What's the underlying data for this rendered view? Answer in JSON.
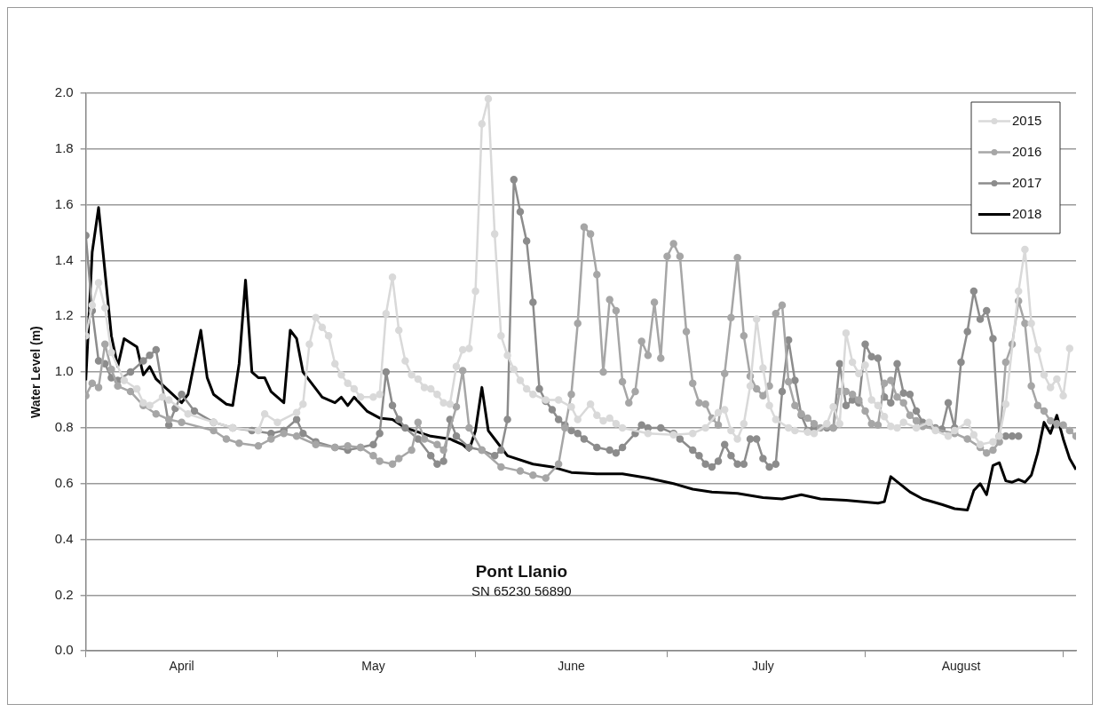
{
  "chart_data": {
    "type": "line",
    "ylabel": "Water Level (m)",
    "annotations": [
      "Pont Llanio",
      "SN 65230 56890"
    ],
    "xlim": [
      "--04-01",
      "--09-03"
    ],
    "xticks": [
      {
        "value": "--04-01",
        "label": null
      },
      {
        "value": "--04-16",
        "label": "April"
      },
      {
        "value": "--05-01",
        "label": null
      },
      {
        "value": "--05-16",
        "label": "May"
      },
      {
        "value": "--06-01",
        "label": null
      },
      {
        "value": "--06-16",
        "label": "June"
      },
      {
        "value": "--07-01",
        "label": null
      },
      {
        "value": "--07-16",
        "label": "July"
      },
      {
        "value": "--08-01",
        "label": null
      },
      {
        "value": "--08-16",
        "label": "August"
      },
      {
        "value": "--09-01",
        "label": null
      }
    ],
    "ylim": [
      0,
      2
    ],
    "yticks": [
      {
        "value": 0,
        "label": "0.0"
      },
      0.2,
      0.4,
      0.6,
      0.8,
      {
        "value": 1,
        "label": "1.0"
      },
      1.2,
      1.4,
      1.6,
      1.8,
      {
        "value": 2,
        "label": "2.0"
      }
    ],
    "grid": "y",
    "legend": "top right",
    "series": [
      {
        "name": "2015",
        "color": "#d9d9d9",
        "marker": "circle",
        "x": [
          "--04-01",
          "--04-02",
          "--04-03",
          "--04-04",
          "--04-05",
          "--04-07",
          "--04-09",
          "--04-10",
          "--04-11",
          "--04-13",
          "--04-14",
          "--04-17",
          "--04-21",
          "--04-24",
          "--04-28",
          "--04-29",
          "--05-01",
          "--05-04",
          "--05-05",
          "--05-06",
          "--05-07",
          "--05-08",
          "--05-09",
          "--05-10",
          "--05-11",
          "--05-12",
          "--05-13",
          "--05-14",
          "--05-16",
          "--05-17",
          "--05-18",
          "--05-19",
          "--05-20",
          "--05-21",
          "--05-22",
          "--05-23",
          "--05-24",
          "--05-25",
          "--05-26",
          "--05-27",
          "--05-28",
          "--05-29",
          "--05-30",
          "--05-31",
          "--06-01",
          "--06-02",
          "--06-03",
          "--06-04",
          "--06-05",
          "--06-06",
          "--06-07",
          "--06-08",
          "--06-09",
          "--06-10",
          "--06-12",
          "--06-14",
          "--06-16",
          "--06-17",
          "--06-19",
          "--06-20",
          "--06-21",
          "--06-22",
          "--06-23",
          "--06-24",
          "--06-28",
          "--07-02",
          "--07-05",
          "--07-07",
          "--07-09",
          "--07-10",
          "--07-11",
          "--07-12",
          "--07-13",
          "--07-14",
          "--07-15",
          "--07-16",
          "--07-17",
          "--07-18",
          "--07-20",
          "--07-21",
          "--07-23",
          "--07-24",
          "--07-26",
          "--07-27",
          "--07-28",
          "--07-29",
          "--07-30",
          "--07-31",
          "--08-01",
          "--08-02",
          "--08-03",
          "--08-04",
          "--08-05",
          "--08-06",
          "--08-07",
          "--08-09",
          "--08-11",
          "--08-12",
          "--08-14",
          "--08-15",
          "--08-17",
          "--08-18",
          "--08-19",
          "--08-21",
          "--08-22",
          "--08-23",
          "--08-25",
          "--08-26",
          "--08-27",
          "--08-28",
          "--08-29",
          "--08-30",
          "--08-31",
          "--09-01",
          "--09-02"
        ],
        "values": [
          1.13,
          1.24,
          1.32,
          1.23,
          1.07,
          0.97,
          0.94,
          0.89,
          0.88,
          0.91,
          0.9,
          0.85,
          0.82,
          0.8,
          0.79,
          0.85,
          0.82,
          0.855,
          0.885,
          1.1,
          1.195,
          1.16,
          1.13,
          1.03,
          0.99,
          0.96,
          0.94,
          0.91,
          0.91,
          0.92,
          1.21,
          1.34,
          1.15,
          1.04,
          0.99,
          0.975,
          0.945,
          0.94,
          0.92,
          0.89,
          0.885,
          1.02,
          1.08,
          1.085,
          1.29,
          1.89,
          1.98,
          1.495,
          1.13,
          1.06,
          1.01,
          0.97,
          0.94,
          0.92,
          0.9,
          0.9,
          0.875,
          0.83,
          0.885,
          0.845,
          0.825,
          0.835,
          0.815,
          0.8,
          0.78,
          0.775,
          0.78,
          0.8,
          0.855,
          0.865,
          0.79,
          0.76,
          0.815,
          0.95,
          1.19,
          1.015,
          0.88,
          0.83,
          0.8,
          0.79,
          0.785,
          0.78,
          0.815,
          0.875,
          0.815,
          1.14,
          1.035,
          0.995,
          1.025,
          0.9,
          0.88,
          0.84,
          0.805,
          0.8,
          0.82,
          0.8,
          0.82,
          0.79,
          0.77,
          0.79,
          0.82,
          0.775,
          0.74,
          0.75,
          0.77,
          0.885,
          1.29,
          1.44,
          1.175,
          1.08,
          0.99,
          0.945,
          0.975,
          0.915,
          1.085
        ]
      },
      {
        "name": "2016",
        "color": "#a6a6a6",
        "marker": "circle",
        "x": [
          "--04-01",
          "--04-02",
          "--04-03",
          "--04-04",
          "--04-05",
          "--04-06",
          "--04-08",
          "--04-10",
          "--04-12",
          "--04-14",
          "--04-16",
          "--04-21",
          "--04-23",
          "--04-25",
          "--04-28",
          "--04-30",
          "--05-02",
          "--05-04",
          "--05-07",
          "--05-10",
          "--05-12",
          "--05-14",
          "--05-16",
          "--05-17",
          "--05-19",
          "--05-20",
          "--05-22",
          "--05-23",
          "--05-24",
          "--05-26",
          "--05-27",
          "--05-29",
          "--05-30",
          "--05-31",
          "--06-02",
          "--06-05",
          "--06-08",
          "--06-10",
          "--06-12",
          "--06-14",
          "--06-15",
          "--06-16",
          "--06-17",
          "--06-18",
          "--06-19",
          "--06-20",
          "--06-21",
          "--06-22",
          "--06-23",
          "--06-24",
          "--06-25",
          "--06-26",
          "--06-27",
          "--06-28",
          "--06-29",
          "--06-30",
          "--07-01",
          "--07-02",
          "--07-03",
          "--07-04",
          "--07-05",
          "--07-06",
          "--07-07",
          "--07-08",
          "--07-09",
          "--07-10",
          "--07-11",
          "--07-12",
          "--07-13",
          "--07-14",
          "--07-15",
          "--07-16",
          "--07-17",
          "--07-18",
          "--07-19",
          "--07-20",
          "--07-21",
          "--07-22",
          "--07-23",
          "--07-24",
          "--07-25",
          "--07-26",
          "--07-27",
          "--07-28",
          "--07-29",
          "--07-30",
          "--07-31",
          "--08-01",
          "--08-02",
          "--08-03",
          "--08-04",
          "--08-05",
          "--08-06",
          "--08-07",
          "--08-08",
          "--08-09",
          "--08-10",
          "--08-12",
          "--08-15",
          "--08-17",
          "--08-19",
          "--08-20",
          "--08-21",
          "--08-22",
          "--08-23",
          "--08-24",
          "--08-25",
          "--08-26",
          "--08-27",
          "--08-28",
          "--08-29",
          "--08-30",
          "--08-31",
          "--09-01",
          "--09-02",
          "--09-03"
        ],
        "values": [
          0.915,
          0.96,
          0.945,
          1.1,
          1.01,
          0.95,
          0.93,
          0.88,
          0.85,
          0.83,
          0.82,
          0.79,
          0.76,
          0.745,
          0.735,
          0.76,
          0.78,
          0.77,
          0.74,
          0.73,
          0.735,
          0.73,
          0.7,
          0.68,
          0.67,
          0.69,
          0.72,
          0.82,
          0.76,
          0.74,
          0.72,
          0.875,
          1.005,
          0.8,
          0.72,
          0.66,
          0.645,
          0.63,
          0.62,
          0.67,
          0.8,
          0.92,
          1.175,
          1.52,
          1.495,
          1.35,
          1.0,
          1.26,
          1.22,
          0.965,
          0.89,
          0.93,
          1.11,
          1.06,
          1.25,
          1.05,
          1.415,
          1.46,
          1.415,
          1.145,
          0.96,
          0.89,
          0.885,
          0.835,
          0.81,
          0.995,
          1.195,
          1.41,
          1.13,
          0.985,
          0.94,
          0.915,
          0.95,
          1.21,
          1.24,
          0.965,
          0.88,
          0.85,
          0.835,
          0.815,
          0.8,
          0.805,
          0.8,
          0.93,
          0.93,
          0.92,
          0.9,
          0.86,
          0.815,
          0.81,
          0.96,
          0.97,
          0.91,
          0.89,
          0.845,
          0.825,
          0.805,
          0.795,
          0.78,
          0.76,
          0.73,
          0.71,
          0.72,
          0.75,
          1.035,
          1.1,
          1.255,
          1.175,
          0.95,
          0.88,
          0.86,
          0.825,
          0.815,
          0.81,
          0.79,
          0.77
        ]
      },
      {
        "name": "2017",
        "color": "#8c8c8c",
        "marker": "circle",
        "x": [
          "--04-01",
          "--04-02",
          "--04-03",
          "--04-04",
          "--04-05",
          "--04-06",
          "--04-08",
          "--04-10",
          "--04-11",
          "--04-12",
          "--04-14",
          "--04-15",
          "--04-16",
          "--04-18",
          "--04-21",
          "--04-24",
          "--04-27",
          "--04-30",
          "--05-02",
          "--05-04",
          "--05-05",
          "--05-07",
          "--05-10",
          "--05-12",
          "--05-14",
          "--05-16",
          "--05-17",
          "--05-18",
          "--05-19",
          "--05-20",
          "--05-21",
          "--05-23",
          "--05-25",
          "--05-26",
          "--05-27",
          "--05-28",
          "--05-29",
          "--05-31",
          "--06-02",
          "--06-04",
          "--06-05",
          "--06-06",
          "--06-07",
          "--06-08",
          "--06-09",
          "--06-10",
          "--06-11",
          "--06-12",
          "--06-13",
          "--06-14",
          "--06-15",
          "--06-16",
          "--06-17",
          "--06-18",
          "--06-20",
          "--06-22",
          "--06-23",
          "--06-24",
          "--06-26",
          "--06-27",
          "--06-28",
          "--06-30",
          "--07-02",
          "--07-03",
          "--07-05",
          "--07-06",
          "--07-07",
          "--07-08",
          "--07-09",
          "--07-10",
          "--07-11",
          "--07-12",
          "--07-13",
          "--07-14",
          "--07-15",
          "--07-16",
          "--07-17",
          "--07-18",
          "--07-19",
          "--07-20",
          "--07-21",
          "--07-22",
          "--07-23",
          "--07-24",
          "--07-26",
          "--07-27",
          "--07-28",
          "--07-29",
          "--07-30",
          "--07-31",
          "--08-01",
          "--08-02",
          "--08-03",
          "--08-04",
          "--08-05",
          "--08-06",
          "--08-07",
          "--08-08",
          "--08-09",
          "--08-10",
          "--08-11",
          "--08-12",
          "--08-13",
          "--08-14",
          "--08-15",
          "--08-16",
          "--08-17",
          "--08-18",
          "--08-19",
          "--08-20",
          "--08-21",
          "--08-22",
          "--08-23",
          "--08-24",
          "--08-25"
        ],
        "values": [
          1.49,
          1.22,
          1.04,
          1.03,
          0.98,
          0.97,
          1.0,
          1.04,
          1.06,
          1.08,
          0.81,
          0.87,
          0.92,
          0.86,
          0.82,
          0.8,
          0.79,
          0.78,
          0.79,
          0.83,
          0.78,
          0.75,
          0.73,
          0.72,
          0.73,
          0.74,
          0.78,
          1.0,
          0.88,
          0.83,
          0.8,
          0.76,
          0.7,
          0.67,
          0.68,
          0.83,
          0.77,
          0.73,
          0.72,
          0.7,
          0.72,
          0.83,
          1.69,
          1.575,
          1.47,
          1.25,
          0.94,
          0.895,
          0.865,
          0.83,
          0.81,
          0.79,
          0.78,
          0.76,
          0.73,
          0.72,
          0.71,
          0.73,
          0.78,
          0.81,
          0.8,
          0.8,
          0.78,
          0.76,
          0.72,
          0.7,
          0.67,
          0.66,
          0.68,
          0.74,
          0.7,
          0.67,
          0.67,
          0.76,
          0.76,
          0.69,
          0.66,
          0.67,
          0.93,
          1.115,
          0.97,
          0.845,
          0.79,
          0.8,
          0.8,
          0.8,
          1.03,
          0.88,
          0.9,
          0.89,
          1.1,
          1.055,
          1.05,
          0.91,
          0.89,
          1.03,
          0.925,
          0.92,
          0.86,
          0.82,
          0.81,
          0.8,
          0.795,
          0.89,
          0.8,
          1.035,
          1.145,
          1.29,
          1.19,
          1.22,
          1.12,
          0.77,
          0.77,
          0.77,
          0.77
        ]
      },
      {
        "name": "2018",
        "color": "#000000",
        "marker": "none",
        "x": [
          "--04-01",
          "--04-02",
          "--04-03",
          "--04-05",
          "--04-06",
          "--04-07",
          "--04-09",
          "--04-10",
          "--04-11",
          "--04-12",
          "--04-16",
          "--04-17",
          "--04-19",
          "--04-20",
          "--04-21",
          "--04-23",
          "--04-24",
          "--04-25",
          "--04-26",
          "--04-27",
          "--04-28",
          "--04-29",
          "--04-30",
          "--05-02",
          "--05-03",
          "--05-04",
          "--05-05",
          "--05-07",
          "--05-08",
          "--05-10",
          "--05-11",
          "--05-12",
          "--05-13",
          "--05-15",
          "--05-17",
          "--05-19",
          "--05-21",
          "--05-25",
          "--05-28",
          "--05-30",
          "--05-31",
          "--06-01",
          "--06-02",
          "--06-03",
          "--06-04",
          "--06-06",
          "--06-10",
          "--06-13",
          "--06-16",
          "--06-20",
          "--06-24",
          "--06-28",
          "--07-02",
          "--07-05",
          "--07-08",
          "--07-12",
          "--07-16",
          "--07-19",
          "--07-22",
          "--07-25",
          "--07-29",
          "--08-03",
          "--08-04",
          "--08-05",
          "--08-08",
          "--08-10",
          "--08-13",
          "--08-15",
          "--08-17",
          "--08-18",
          "--08-19",
          "--08-20",
          "--08-21",
          "--08-22",
          "--08-23",
          "--08-24",
          "--08-25",
          "--08-26",
          "--08-27",
          "--08-28",
          "--08-29",
          "--08-30",
          "--08-31",
          "--09-01",
          "--09-02",
          "--09-03"
        ],
        "values": [
          0.97,
          1.43,
          1.59,
          1.13,
          1.02,
          1.12,
          1.09,
          0.99,
          1.02,
          0.975,
          0.89,
          0.92,
          1.15,
          0.98,
          0.92,
          0.885,
          0.88,
          1.03,
          1.33,
          1.0,
          0.98,
          0.98,
          0.93,
          0.89,
          1.15,
          1.12,
          1.0,
          0.94,
          0.91,
          0.89,
          0.91,
          0.88,
          0.91,
          0.86,
          0.835,
          0.83,
          0.8,
          0.77,
          0.76,
          0.74,
          0.72,
          0.79,
          0.945,
          0.79,
          0.76,
          0.7,
          0.67,
          0.66,
          0.64,
          0.635,
          0.635,
          0.62,
          0.6,
          0.58,
          0.57,
          0.565,
          0.55,
          0.545,
          0.56,
          0.545,
          0.54,
          0.53,
          0.535,
          0.625,
          0.57,
          0.545,
          0.525,
          0.51,
          0.505,
          0.575,
          0.6,
          0.56,
          0.665,
          0.675,
          0.61,
          0.605,
          0.615,
          0.605,
          0.63,
          0.71,
          0.82,
          0.78,
          0.845,
          0.76,
          0.69,
          0.65
        ]
      }
    ]
  }
}
